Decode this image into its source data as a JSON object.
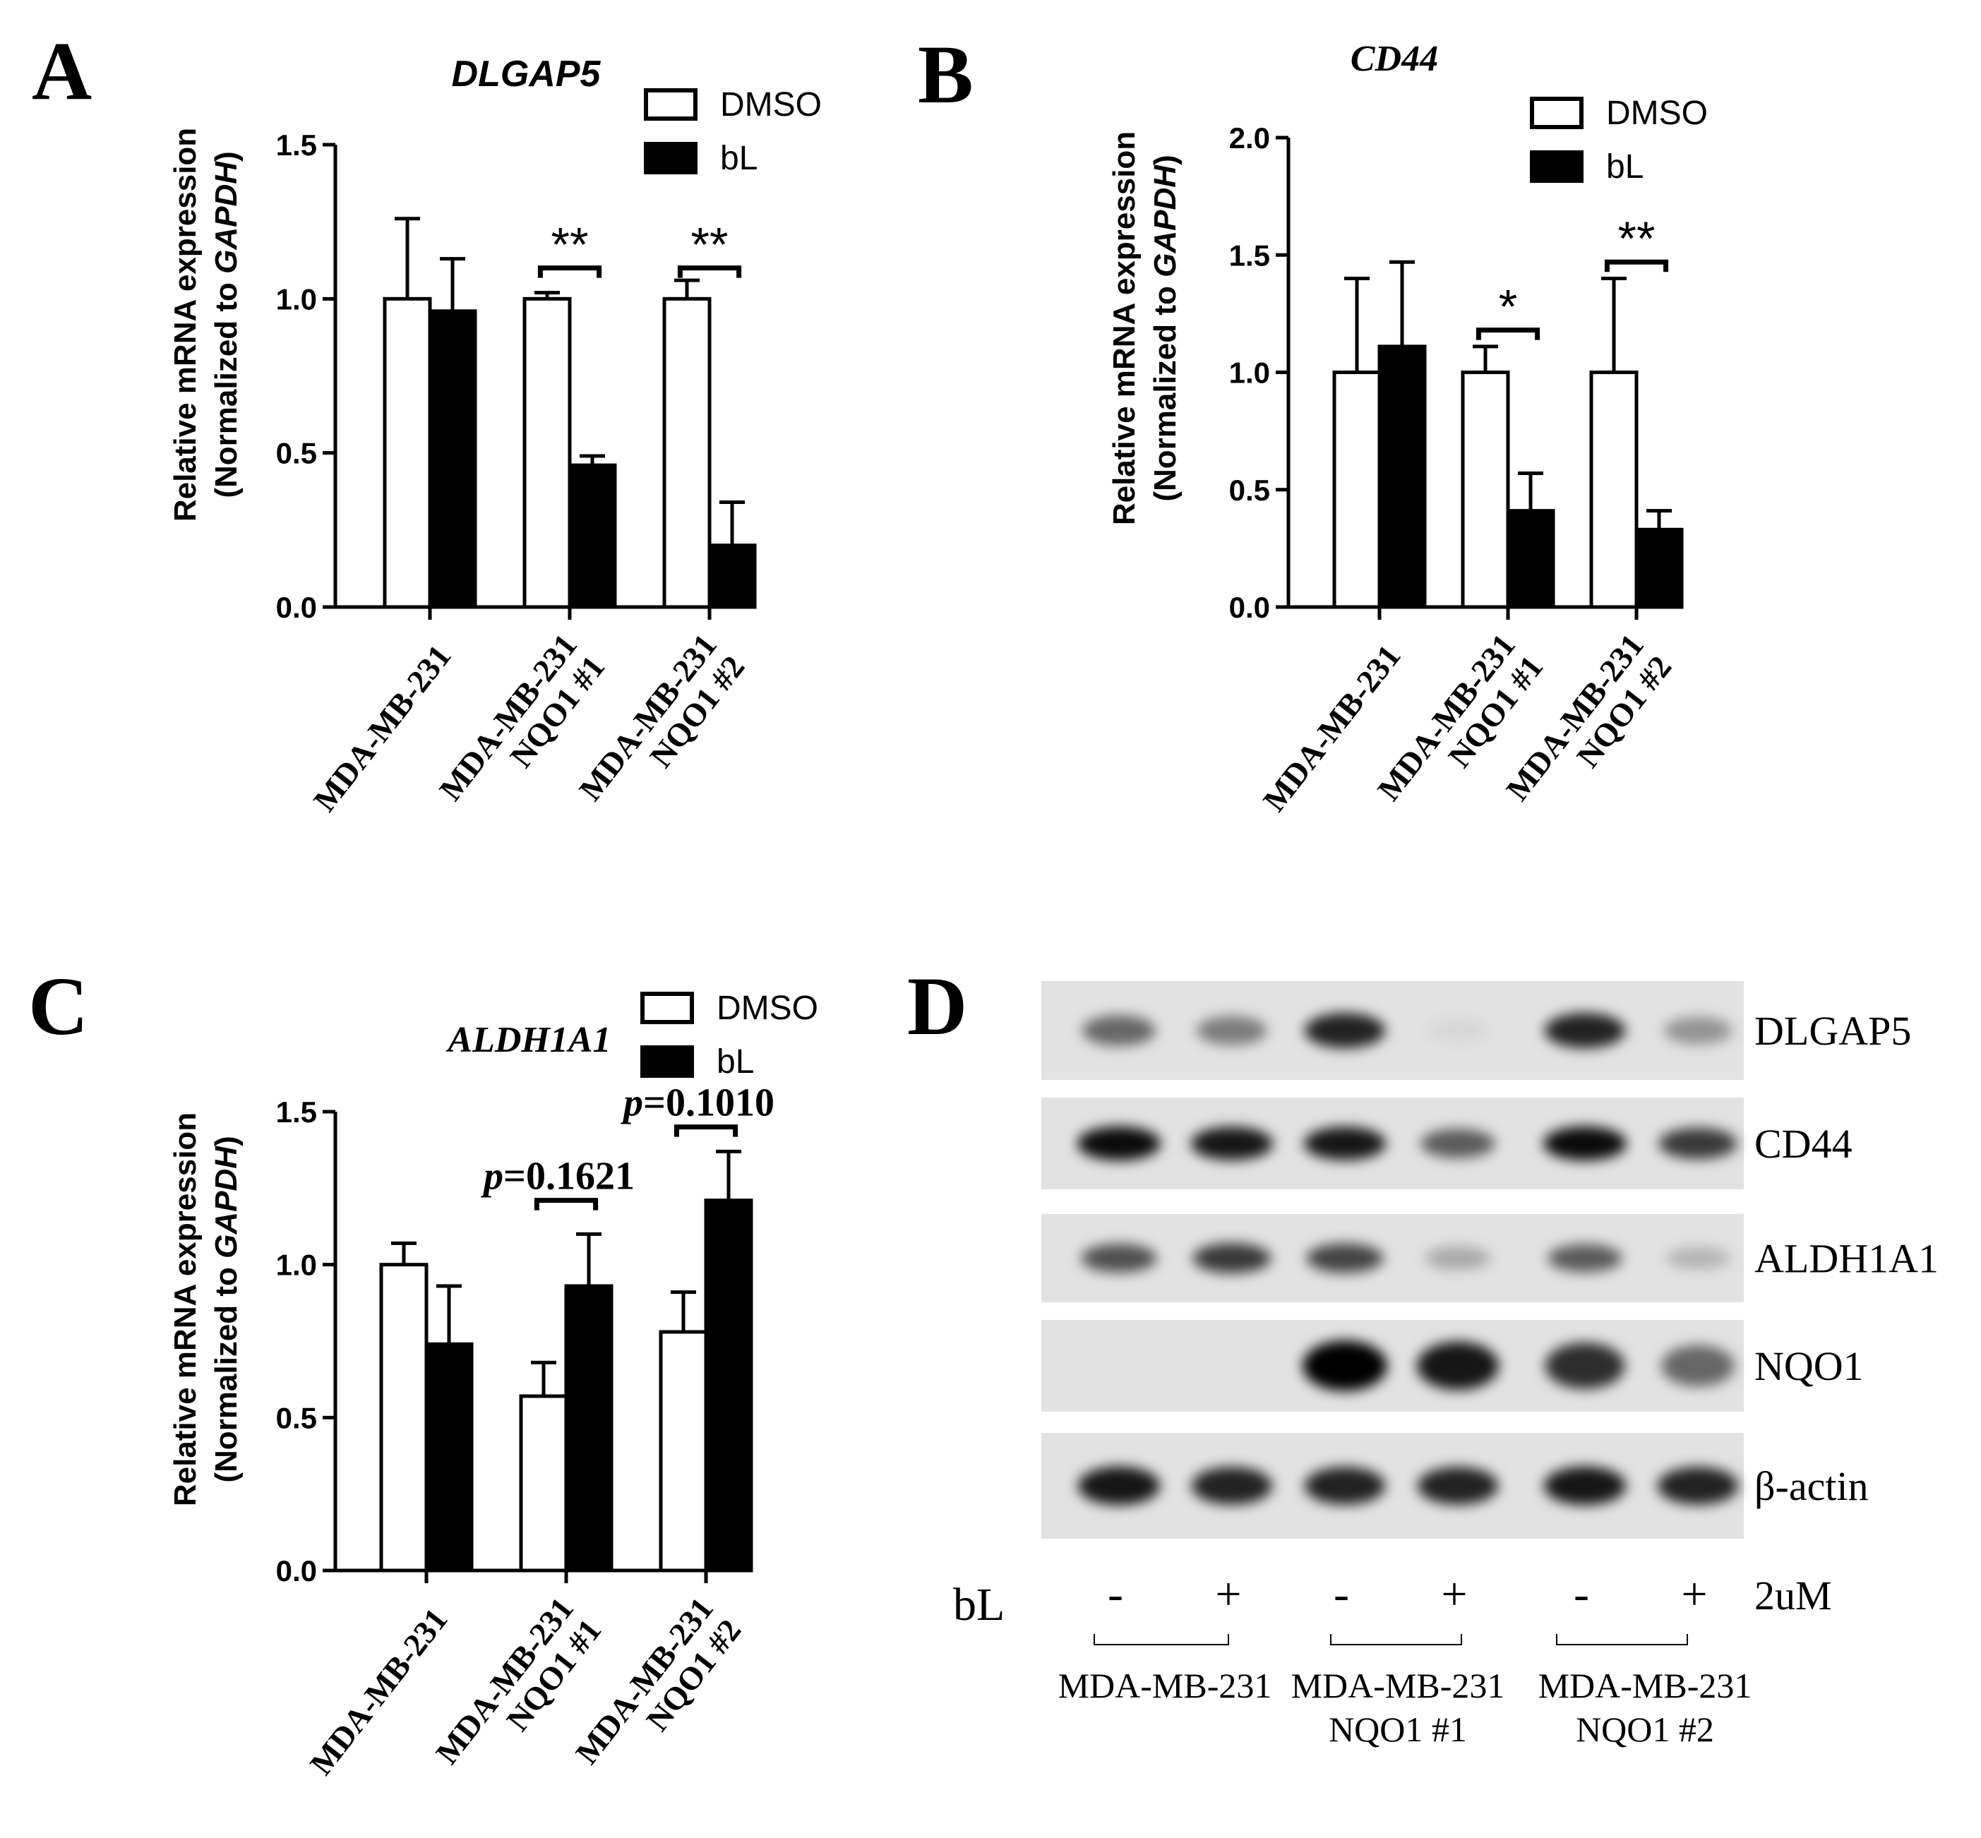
{
  "panels": [
    {
      "id": "A",
      "letter": "A",
      "chart_data": {
        "type": "bar",
        "title": "DLGAP5",
        "ylabel_line1": "Relative mRNA expression",
        "ylabel_line2_prefix": "(Normalized to ",
        "ylabel_line2_italic": "GAPDH",
        "ylabel_line2_suffix": ")",
        "ylim": [
          0,
          1.5
        ],
        "yticks": [
          "0.0",
          "0.5",
          "1.0",
          "1.5"
        ],
        "ytick_values": [
          0,
          0.5,
          1.0,
          1.5
        ],
        "categories": [
          [
            "MDA-MB-231"
          ],
          [
            "MDA-MB-231",
            "NQO1 #1"
          ],
          [
            "MDA-MB-231",
            "NQO1 #2"
          ]
        ],
        "series": [
          {
            "name": "DMSO",
            "values": [
              1.0,
              1.0,
              1.0
            ],
            "errors": [
              0.26,
              0.02,
              0.06
            ],
            "fill": "#ffffff"
          },
          {
            "name": "bL",
            "values": [
              0.96,
              0.46,
              0.2
            ],
            "errors": [
              0.17,
              0.03,
              0.14
            ],
            "fill": "#000000"
          }
        ],
        "annotations": [
          {
            "group": 1,
            "text": "**",
            "at": 1.1
          },
          {
            "group": 2,
            "text": "**",
            "at": 1.1
          }
        ],
        "legend": "top-right",
        "grid": false
      }
    },
    {
      "id": "B",
      "letter": "B",
      "chart_data": {
        "type": "bar",
        "title": "CD44",
        "ylabel_line1": "Relative mRNA expression",
        "ylabel_line2_prefix": "(Normalized to ",
        "ylabel_line2_italic": "GAPDH",
        "ylabel_line2_suffix": ")",
        "ylim": [
          0,
          2.0
        ],
        "yticks": [
          "0.0",
          "0.5",
          "1.0",
          "1.5",
          "2.0"
        ],
        "ytick_values": [
          0,
          0.5,
          1.0,
          1.5,
          2.0
        ],
        "categories": [
          [
            "MDA-MB-231"
          ],
          [
            "MDA-MB-231",
            "NQO1 #1"
          ],
          [
            "MDA-MB-231",
            "NQO1 #2"
          ]
        ],
        "series": [
          {
            "name": "DMSO",
            "values": [
              1.0,
              1.0,
              1.0
            ],
            "errors": [
              0.4,
              0.11,
              0.4
            ],
            "fill": "#ffffff"
          },
          {
            "name": "bL",
            "values": [
              1.11,
              0.41,
              0.33
            ],
            "errors": [
              0.36,
              0.16,
              0.08
            ],
            "fill": "#000000"
          }
        ],
        "annotations": [
          {
            "group": 1,
            "text": "*",
            "at": 1.18
          },
          {
            "group": 2,
            "text": "**",
            "at": 1.47
          }
        ],
        "legend": "top-right",
        "grid": false
      }
    },
    {
      "id": "C",
      "letter": "C",
      "chart_data": {
        "type": "bar",
        "title": "ALDH1A1",
        "ylabel_line1": "Relative mRNA expression",
        "ylabel_line2_prefix": "(Normalized to ",
        "ylabel_line2_italic": "GAPDH",
        "ylabel_line2_suffix": ")",
        "ylim": [
          0,
          1.5
        ],
        "yticks": [
          "0.0",
          "0.5",
          "1.0",
          "1.5"
        ],
        "ytick_values": [
          0,
          0.5,
          1.0,
          1.5
        ],
        "categories": [
          [
            "MDA-MB-231"
          ],
          [
            "MDA-MB-231",
            "NQO1 #1"
          ],
          [
            "MDA-MB-231",
            "NQO1 #2"
          ]
        ],
        "series": [
          {
            "name": "DMSO",
            "values": [
              1.0,
              0.57,
              0.78
            ],
            "errors": [
              0.07,
              0.11,
              0.13
            ],
            "fill": "#ffffff"
          },
          {
            "name": "bL",
            "values": [
              0.74,
              0.93,
              1.21
            ],
            "errors": [
              0.19,
              0.17,
              0.16
            ],
            "fill": "#000000"
          }
        ],
        "annotations": [
          {
            "group": 1,
            "p_label": "p",
            "text": "=0.1621",
            "at": 1.21
          },
          {
            "group": 2,
            "p_label": "p",
            "text": "=0.1010",
            "at": 1.45
          }
        ],
        "legend": "top-right",
        "grid": false
      }
    }
  ],
  "blot": {
    "letter": "D",
    "bands": [
      "DLGAP5",
      "CD44",
      "ALDH1A1",
      "NQO1",
      "β-actin"
    ],
    "intensities": [
      [
        0.55,
        0.45,
        0.85,
        0.05,
        0.85,
        0.35
      ],
      [
        0.95,
        0.9,
        0.9,
        0.6,
        0.95,
        0.75
      ],
      [
        0.65,
        0.75,
        0.7,
        0.25,
        0.6,
        0.2
      ],
      [
        0.0,
        0.0,
        1.0,
        0.9,
        0.8,
        0.55
      ],
      [
        0.9,
        0.85,
        0.85,
        0.85,
        0.9,
        0.85
      ]
    ],
    "treatment_label": "bL",
    "lane_signs": [
      "-",
      "+",
      "-",
      "+",
      "-",
      "+"
    ],
    "dose": "2uM",
    "groups": [
      [
        "MDA-MB-231"
      ],
      [
        "MDA-MB-231",
        "NQO1 #1"
      ],
      [
        "MDA-MB-231",
        "NQO1 #2"
      ]
    ]
  }
}
